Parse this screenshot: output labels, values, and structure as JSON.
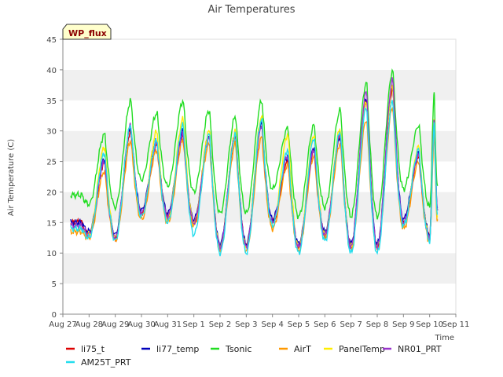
{
  "chart_data": {
    "type": "line",
    "title": "Air Temperatures",
    "xlabel": "Time",
    "ylabel": "Air Temperature (C)",
    "ylim": [
      0,
      45
    ],
    "yticks": [
      0,
      5,
      10,
      15,
      20,
      25,
      30,
      35,
      40,
      45
    ],
    "xlim": [
      0,
      15
    ],
    "xticks": [
      {
        "x": 0,
        "label": "Aug 27"
      },
      {
        "x": 1,
        "label": "Aug 28"
      },
      {
        "x": 2,
        "label": "Aug 29"
      },
      {
        "x": 3,
        "label": "Aug 30"
      },
      {
        "x": 4,
        "label": "Aug 31"
      },
      {
        "x": 5,
        "label": "Sep 1"
      },
      {
        "x": 6,
        "label": "Sep 2"
      },
      {
        "x": 7,
        "label": "Sep 3"
      },
      {
        "x": 8,
        "label": "Sep 4"
      },
      {
        "x": 9,
        "label": "Sep 5"
      },
      {
        "x": 10,
        "label": "Sep 6"
      },
      {
        "x": 11,
        "label": "Sep 7"
      },
      {
        "x": 12,
        "label": "Sep 8"
      },
      {
        "x": 13,
        "label": "Sep 9"
      },
      {
        "x": 14,
        "label": "Sep 10"
      },
      {
        "x": 15,
        "label": "Sep 11"
      }
    ],
    "grid": "horizontal bands",
    "legend_position": "bottom",
    "annotation": "WP_flux",
    "day_x": [
      0.3,
      1.0,
      2.0,
      3.0,
      4.0,
      5.0,
      6.0,
      7.0,
      8.0,
      9.0,
      10.0,
      11.0,
      12.0,
      13.0,
      14.0,
      14.3
    ],
    "series": [
      {
        "name": "li75_t",
        "color": "#dd0000",
        "daily_min": [
          15.0,
          13.0,
          12.5,
          16.5,
          16.0,
          15.0,
          11.0,
          11.0,
          15.0,
          11.0,
          13.0,
          11.0,
          11.0,
          15.0,
          12.5,
          17.0
        ],
        "daily_max": [
          15.0,
          25.0,
          30.0,
          28.0,
          29.5,
          29.5,
          29.5,
          31.0,
          25.0,
          27.0,
          29.5,
          35.0,
          37.0,
          26.0,
          31.0,
          17.0
        ]
      },
      {
        "name": "li77_temp",
        "color": "#0000bb",
        "daily_min": [
          15.0,
          13.5,
          13.0,
          17.0,
          16.5,
          15.5,
          11.5,
          11.5,
          15.5,
          11.5,
          13.5,
          11.5,
          11.5,
          15.5,
          13.0,
          17.5
        ],
        "daily_max": [
          15.0,
          25.5,
          30.5,
          28.5,
          30.0,
          29.0,
          29.5,
          31.5,
          26.0,
          27.5,
          29.0,
          35.5,
          37.5,
          26.5,
          31.5,
          17.5
        ]
      },
      {
        "name": "Tsonic",
        "color": "#22dd22",
        "daily_min": [
          19.5,
          18.0,
          17.5,
          22.0,
          21.0,
          20.0,
          16.5,
          16.5,
          20.5,
          16.0,
          17.5,
          16.0,
          16.0,
          20.5,
          17.5,
          21.0
        ],
        "daily_max": [
          19.5,
          29.5,
          35.0,
          33.0,
          35.0,
          33.5,
          32.5,
          35.0,
          30.5,
          31.0,
          33.5,
          38.0,
          40.0,
          31.0,
          36.0,
          21.0
        ]
      },
      {
        "name": "AirT",
        "color": "#ff9900",
        "daily_min": [
          13.5,
          12.5,
          12.0,
          15.5,
          15.0,
          14.5,
          10.5,
          10.5,
          14.0,
          10.5,
          12.5,
          10.5,
          10.5,
          14.0,
          12.0,
          15.5
        ],
        "daily_max": [
          13.5,
          23.5,
          28.5,
          27.0,
          28.5,
          28.0,
          28.0,
          29.0,
          24.5,
          26.0,
          28.0,
          32.0,
          34.0,
          25.0,
          29.5,
          15.5
        ]
      },
      {
        "name": "PanelTemp",
        "color": "#ffee00",
        "daily_min": [
          14.0,
          13.0,
          12.5,
          16.0,
          15.5,
          15.0,
          11.0,
          11.0,
          14.5,
          11.0,
          13.0,
          11.0,
          11.0,
          14.5,
          12.5,
          16.0
        ],
        "daily_max": [
          14.0,
          27.5,
          31.0,
          30.0,
          32.0,
          30.0,
          30.0,
          32.5,
          29.5,
          29.5,
          30.5,
          35.0,
          37.5,
          27.5,
          32.0,
          16.0
        ]
      },
      {
        "name": "NR01_PRT",
        "color": "#9933cc",
        "daily_min": [
          14.5,
          13.0,
          12.5,
          16.5,
          16.0,
          15.0,
          11.0,
          11.0,
          15.0,
          11.0,
          13.0,
          11.0,
          11.0,
          15.0,
          12.5,
          17.0
        ],
        "daily_max": [
          14.5,
          25.0,
          31.0,
          28.0,
          29.5,
          29.0,
          29.5,
          31.0,
          26.0,
          27.0,
          29.5,
          36.5,
          38.5,
          26.0,
          32.0,
          17.0
        ]
      },
      {
        "name": "AM25T_PRT",
        "color": "#22ddee",
        "daily_min": [
          14.0,
          12.5,
          12.0,
          16.0,
          15.0,
          13.0,
          10.0,
          10.0,
          14.5,
          10.0,
          12.0,
          10.0,
          10.0,
          14.5,
          12.0,
          16.5
        ],
        "daily_max": [
          14.0,
          26.5,
          31.0,
          28.5,
          31.0,
          29.5,
          29.5,
          32.0,
          27.0,
          29.0,
          30.0,
          34.0,
          35.0,
          27.0,
          31.5,
          16.5
        ]
      }
    ]
  }
}
